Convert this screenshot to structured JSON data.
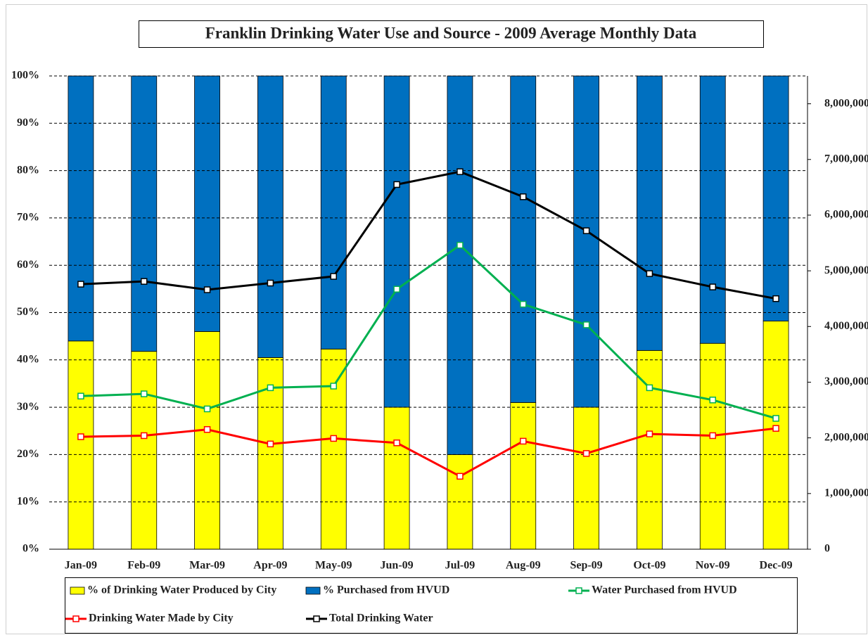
{
  "chart_data": {
    "type": "bar",
    "title": "Franklin Drinking Water Use and Source - 2009 Average Monthly Data",
    "categories": [
      "Jan-09",
      "Feb-09",
      "Mar-09",
      "Apr-09",
      "May-09",
      "Jun-09",
      "Jul-09",
      "Aug-09",
      "Sep-09",
      "Oct-09",
      "Nov-09",
      "Dec-09"
    ],
    "stacked": true,
    "grid": true,
    "ylim": [
      0,
      100
    ],
    "yticks": [
      {
        "value": 0,
        "label": "0%"
      },
      {
        "value": 10,
        "label": "10%"
      },
      {
        "value": 20,
        "label": "20%"
      },
      {
        "value": 30,
        "label": "30%"
      },
      {
        "value": 40,
        "label": "40%"
      },
      {
        "value": 50,
        "label": "50%"
      },
      {
        "value": 60,
        "label": "60%"
      },
      {
        "value": 70,
        "label": "70%"
      },
      {
        "value": 80,
        "label": "80%"
      },
      {
        "value": 90,
        "label": "90%"
      },
      {
        "value": 100,
        "label": "100%"
      }
    ],
    "y2lim": [
      0,
      8500000
    ],
    "y2ticks": [
      0,
      {
        "value": 1000000,
        "label": "1,000,000"
      },
      {
        "value": 2000000,
        "label": "2,000,000"
      },
      {
        "value": 3000000,
        "label": "3,000,000"
      },
      {
        "value": 4000000,
        "label": "4,000,000"
      },
      {
        "value": 5000000,
        "label": "5,000,000"
      },
      {
        "value": 6000000,
        "label": "6,000,000"
      },
      {
        "value": 7000000,
        "label": "7,000,000"
      },
      {
        "value": 8000000,
        "label": "8,000,000"
      }
    ],
    "series": [
      {
        "name": "% of Drinking Water Produced by City",
        "type": "bar",
        "color": "#ffff00",
        "values": [
          44,
          41.8,
          46,
          40.5,
          42.3,
          30,
          20,
          31,
          30,
          42,
          43.5,
          48.2
        ]
      },
      {
        "name": "% Purchased from HVUD",
        "type": "bar",
        "color": "#0070c0",
        "values": [
          56,
          58.2,
          54,
          59.5,
          57.7,
          70,
          80,
          69,
          70,
          58,
          56.5,
          51.8
        ]
      },
      {
        "name": "Water Purchased from HVUD",
        "type": "line",
        "axis": "y2",
        "color": "#00b050",
        "values": [
          2750000,
          2790000,
          2520000,
          2900000,
          2930000,
          4670000,
          5460000,
          4400000,
          4030000,
          2900000,
          2680000,
          2350000
        ]
      },
      {
        "name": "Drinking Water Made by City",
        "type": "line",
        "axis": "y2",
        "color": "#ff0000",
        "values": [
          2020000,
          2040000,
          2150000,
          1890000,
          1990000,
          1910000,
          1310000,
          1940000,
          1720000,
          2070000,
          2040000,
          2170000
        ]
      },
      {
        "name": "Total Drinking Water",
        "type": "line",
        "axis": "y2",
        "color": "#000000",
        "values": [
          4760000,
          4810000,
          4660000,
          4780000,
          4900000,
          6550000,
          6780000,
          6330000,
          5720000,
          4950000,
          4710000,
          4500000
        ]
      }
    ]
  }
}
